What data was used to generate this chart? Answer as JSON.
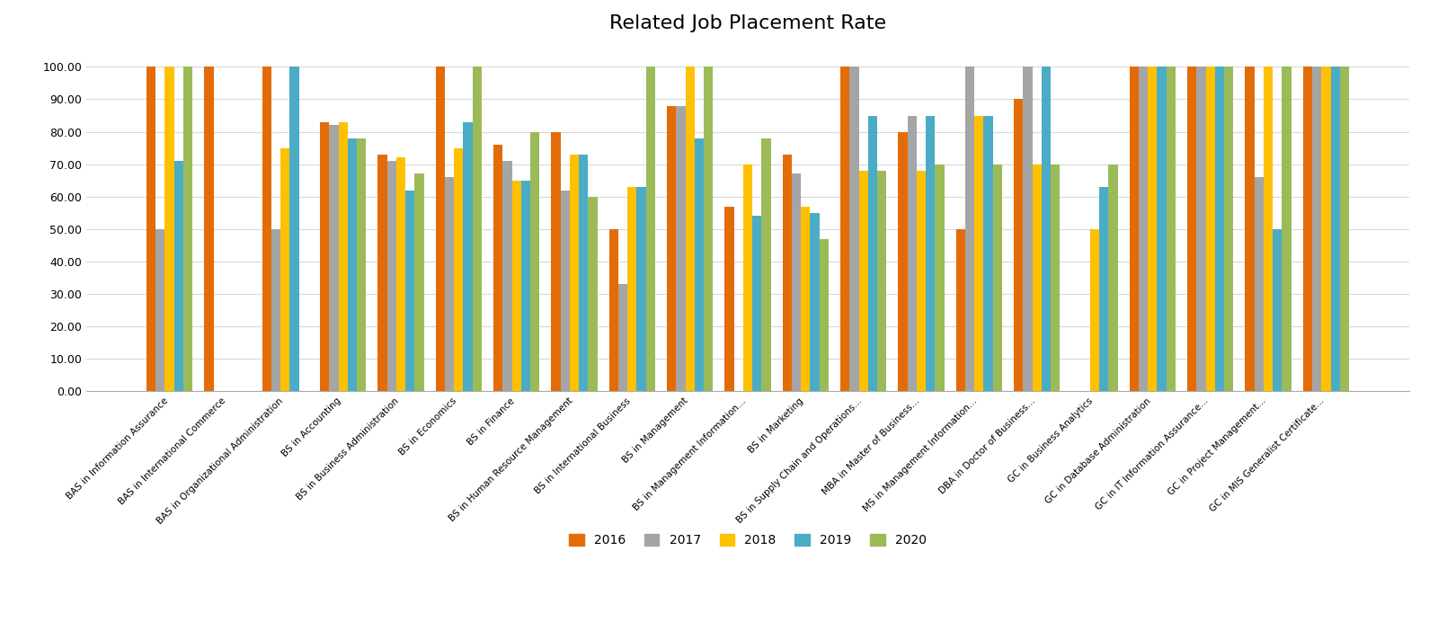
{
  "title": "Related Job Placement Rate",
  "categories": [
    "BAS in Information Assurance",
    "BAS in International Commerce",
    "BAS in Organizational Administration",
    "BS in Accounting",
    "BS in Business Administration",
    "BS in Economics",
    "BS in Finance",
    "BS in Human Resource Management",
    "BS in International Business",
    "BS in Management",
    "BS in Management Information...",
    "BS in Marketing",
    "BS in Supply Chain and Operations...",
    "MBA in Master of Business...",
    "MS in Management Information...",
    "DBA in Doctor of Business...",
    "GC in Business Analytics",
    "GC in Database Administration",
    "GC in IT Information Assurance...",
    "GC in Project Management...",
    "GC in MIS Generalist Certificate..."
  ],
  "series": {
    "2016": [
      100,
      100,
      100,
      83,
      73,
      100,
      76,
      80,
      50,
      88,
      57,
      73,
      100,
      80,
      50,
      90,
      0,
      100,
      100,
      100,
      100
    ],
    "2017": [
      50,
      0,
      50,
      82,
      71,
      66,
      71,
      62,
      33,
      88,
      0,
      67,
      100,
      85,
      100,
      100,
      0,
      100,
      100,
      66,
      100
    ],
    "2018": [
      100,
      0,
      75,
      83,
      72,
      75,
      65,
      73,
      63,
      100,
      70,
      57,
      68,
      68,
      85,
      70,
      50,
      100,
      100,
      100,
      100
    ],
    "2019": [
      71,
      0,
      100,
      78,
      62,
      83,
      65,
      73,
      63,
      78,
      54,
      55,
      85,
      85,
      85,
      100,
      63,
      100,
      100,
      50,
      100
    ],
    "2020": [
      100,
      0,
      0,
      78,
      67,
      100,
      80,
      60,
      100,
      100,
      78,
      47,
      68,
      70,
      70,
      70,
      70,
      100,
      100,
      100,
      100
    ]
  },
  "colors": {
    "2016": "#E36C09",
    "2017": "#A5A5A5",
    "2018": "#FFC000",
    "2019": "#4BACC6",
    "2020": "#9BBB59"
  },
  "ylim": [
    0,
    100
  ],
  "yticks": [
    0,
    10,
    20,
    30,
    40,
    50,
    60,
    70,
    80,
    90,
    100
  ],
  "ytick_labels": [
    "0.00",
    "10.00",
    "20.00",
    "30.00",
    "40.00",
    "50.00",
    "60.00",
    "70.00",
    "80.00",
    "90.00",
    "100.00"
  ],
  "bar_width": 0.16,
  "figsize": [
    16.0,
    7.02
  ],
  "dpi": 100,
  "title_fontsize": 16,
  "xlabel_fontsize": 7.5,
  "ylabel_fontsize": 9,
  "legend_fontsize": 10
}
